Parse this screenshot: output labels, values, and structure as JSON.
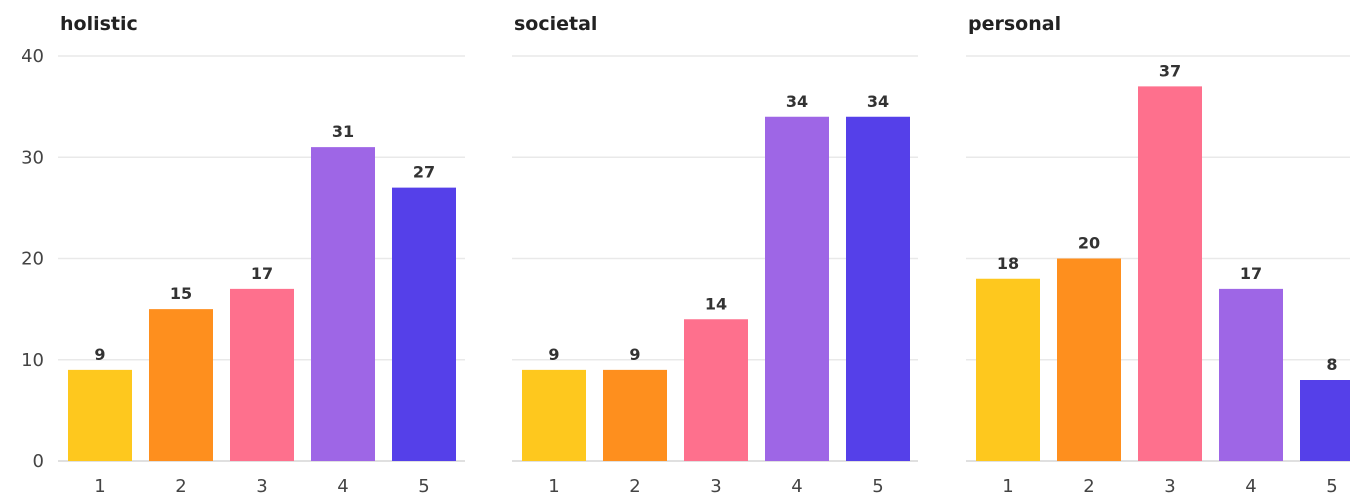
{
  "colors": {
    "1": "#fec81e",
    "2": "#fe8f1e",
    "3": "#fe708d",
    "4": "#9e66e6",
    "5": "#5540e9"
  },
  "chart_data": [
    {
      "type": "bar",
      "title": "holistic",
      "categories": [
        "1",
        "2",
        "3",
        "4",
        "5"
      ],
      "values": [
        9,
        15,
        17,
        31,
        27
      ],
      "ylim": [
        0,
        40
      ],
      "yticks": [
        0,
        10,
        20,
        30,
        40
      ],
      "grid": true,
      "show_y_tick_labels": true
    },
    {
      "type": "bar",
      "title": "societal",
      "categories": [
        "1",
        "2",
        "3",
        "4",
        "5"
      ],
      "values": [
        9,
        9,
        14,
        34,
        34
      ],
      "ylim": [
        0,
        40
      ],
      "yticks": [
        0,
        10,
        20,
        30,
        40
      ],
      "grid": true,
      "show_y_tick_labels": false
    },
    {
      "type": "bar",
      "title": "personal",
      "categories": [
        "1",
        "2",
        "3",
        "4",
        "5"
      ],
      "values": [
        18,
        20,
        37,
        17,
        8
      ],
      "ylim": [
        0,
        40
      ],
      "yticks": [
        0,
        10,
        20,
        30,
        40
      ],
      "grid": true,
      "show_y_tick_labels": false
    }
  ]
}
